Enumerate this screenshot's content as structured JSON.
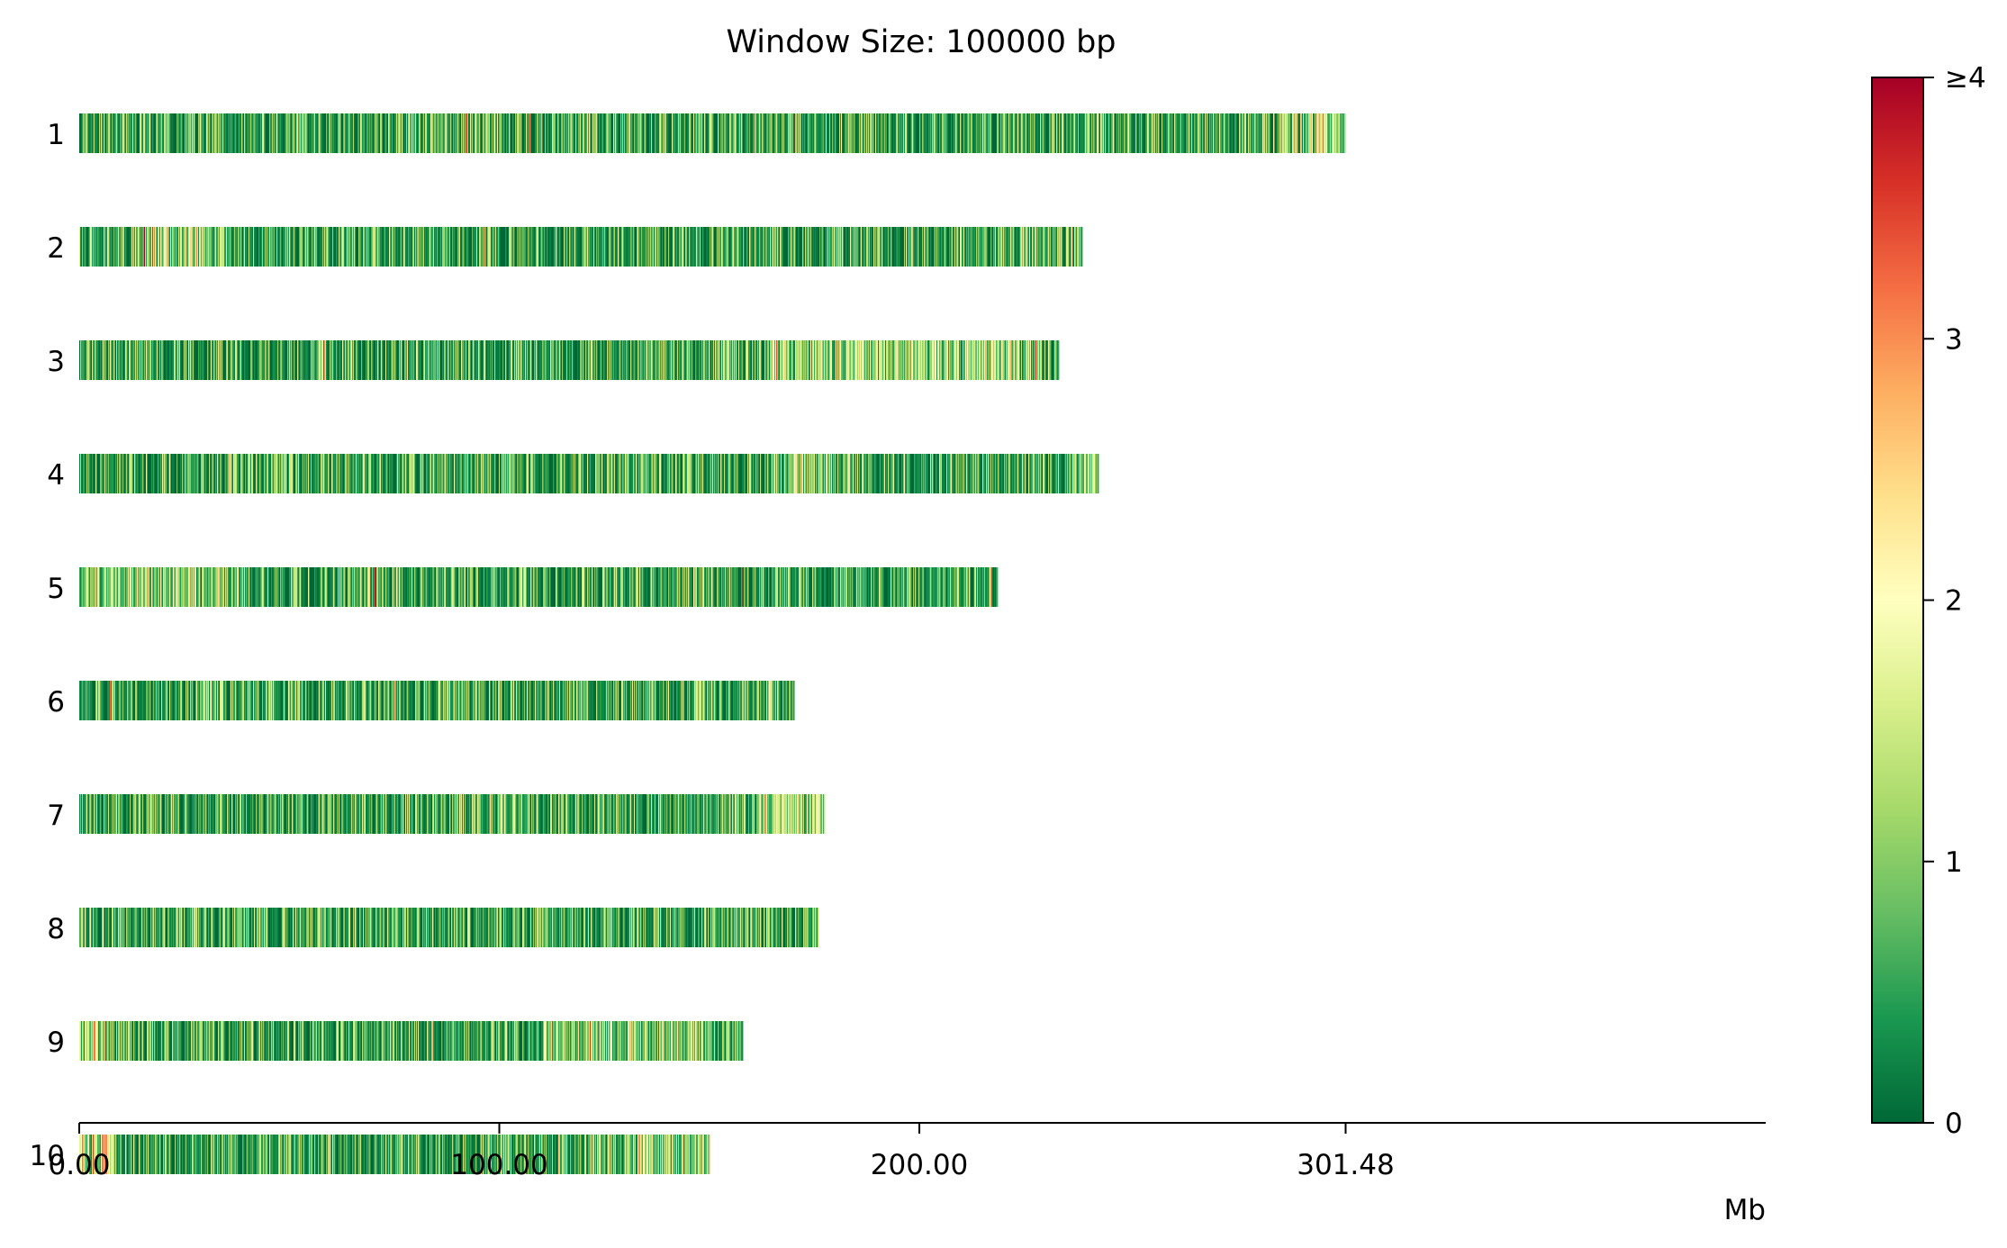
{
  "chart_data": {
    "type": "heatmap",
    "title": "Window Size: 100000 bp",
    "xlabel": "Mb",
    "xlim": [
      0,
      401.48
    ],
    "x_ticks": [
      {
        "value": 0,
        "label": "0.00"
      },
      {
        "value": 100,
        "label": "100.00"
      },
      {
        "value": 200,
        "label": "200.00"
      },
      {
        "value": 301.48,
        "label": "301.48"
      }
    ],
    "window_mb": 0.1,
    "chromosomes": [
      {
        "name": "1",
        "length_mb": 301.48
      },
      {
        "name": "2",
        "length_mb": 238.6
      },
      {
        "name": "3",
        "length_mb": 233.0
      },
      {
        "name": "4",
        "length_mb": 242.6
      },
      {
        "name": "5",
        "length_mb": 218.6
      },
      {
        "name": "6",
        "length_mb": 170.3
      },
      {
        "name": "7",
        "length_mb": 177.4
      },
      {
        "name": "8",
        "length_mb": 175.9
      },
      {
        "name": "9",
        "length_mb": 157.8
      },
      {
        "name": "10",
        "length_mb": 150.0
      }
    ],
    "colorbar": {
      "min": 0,
      "max": 4,
      "colormap": [
        "#006837",
        "#1a9850",
        "#66bd63",
        "#a6d96a",
        "#d9ef8b",
        "#ffffbf",
        "#fee08b",
        "#fdae61",
        "#f46d43",
        "#d73027",
        "#a50026"
      ],
      "ticks": [
        {
          "value": 0,
          "label": "0"
        },
        {
          "value": 1,
          "label": "1"
        },
        {
          "value": 2,
          "label": "2"
        },
        {
          "value": 3,
          "label": "3"
        },
        {
          "value": 4,
          "label": "≥4"
        }
      ]
    }
  }
}
